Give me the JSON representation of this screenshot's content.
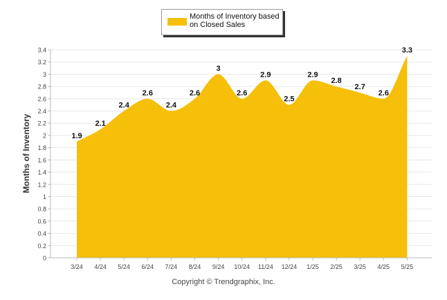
{
  "chart_data": {
    "type": "area",
    "title": "",
    "ylabel": "Months of Inventory",
    "xlabel": "",
    "categories": [
      "3/24",
      "4/24",
      "5/24",
      "6/24",
      "7/24",
      "8/24",
      "9/24",
      "10/24",
      "11/24",
      "12/24",
      "1/25",
      "2/25",
      "3/25",
      "4/25",
      "5/25"
    ],
    "series": [
      {
        "name": "Months of Inventory based on Closed Sales",
        "values": [
          1.9,
          2.1,
          2.4,
          2.6,
          2.4,
          2.6,
          3,
          2.6,
          2.9,
          2.5,
          2.9,
          2.8,
          2.7,
          2.6,
          3.3
        ]
      }
    ],
    "data_labels": [
      "1.9",
      "2.1",
      "2.4",
      "2.6",
      "2.4",
      "2.6",
      "3",
      "2.6",
      "2.9",
      "2.5",
      "2.9",
      "2.8",
      "2.7",
      "2.6",
      "3.3"
    ],
    "ylim": [
      0,
      3.4
    ],
    "yticks": [
      "0",
      "0.2",
      "0.4",
      "0.6",
      "0.8",
      "1",
      "1.2",
      "1.4",
      "1.6",
      "1.8",
      "2",
      "2.2",
      "2.4",
      "2.6",
      "2.8",
      "3",
      "3.2",
      "3.4"
    ],
    "grid": true,
    "legend_position": "top-center",
    "fill_color": "#F5BF0A"
  },
  "copyright": "Copyright © Trendgraphix, Inc."
}
